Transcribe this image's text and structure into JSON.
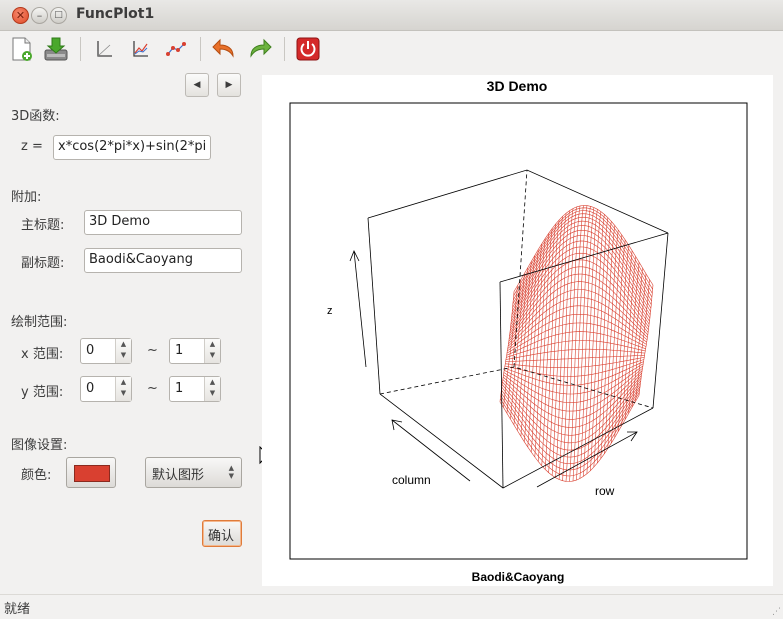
{
  "window": {
    "title": "FuncPlot1"
  },
  "toolbar": {
    "items": [
      {
        "name": "new-file-icon"
      },
      {
        "name": "save-download-icon"
      },
      {
        "name": "axes-icon"
      },
      {
        "name": "line-chart-icon"
      },
      {
        "name": "scatter-chart-icon"
      },
      {
        "name": "undo-icon"
      },
      {
        "name": "redo-icon"
      },
      {
        "name": "power-icon"
      }
    ]
  },
  "panel": {
    "func_section": "3D函数:",
    "z_label": "z =",
    "z_expr": "x*cos(2*pi*x)+sin(2*pi",
    "extra_section": "附加:",
    "main_title_label": "主标题:",
    "main_title_value": "3D Demo",
    "sub_title_label": "副标题:",
    "sub_title_value": "Baodi&Caoyang",
    "range_section": "绘制范围:",
    "x_range_label": "x 范围:",
    "x_min": "0",
    "x_max": "1",
    "y_range_label": "y 范围:",
    "y_min": "0",
    "y_max": "1",
    "tilde": "~",
    "image_section": "图像设置:",
    "color_label": "颜色:",
    "color_value": "#d94030",
    "shape_select": "默认图形",
    "confirm_button": "确认"
  },
  "plot": {
    "title": "3D Demo",
    "subtitle": "Baodi&Caoyang",
    "xlabel": "column",
    "ylabel": "row",
    "zlabel": "z",
    "surface_color": "#d94030"
  },
  "status": {
    "text": "就绪"
  }
}
